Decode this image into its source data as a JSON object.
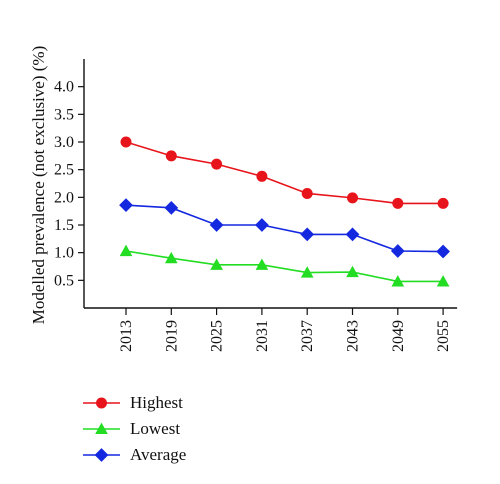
{
  "chart_data": {
    "type": "line",
    "ylabel": "Modelled prevalence (not exclusive) (%)",
    "xlabel": "",
    "categories": [
      "2013",
      "2019",
      "2025",
      "2031",
      "2037",
      "2043",
      "2049",
      "2055"
    ],
    "yticks": [
      "0.5",
      "1.0",
      "1.5",
      "2.0",
      "2.5",
      "3.0",
      "3.5",
      "4.0"
    ],
    "ylim": [
      0.0,
      4.5
    ],
    "grid": false,
    "legend_position": "bottom-left",
    "series": [
      {
        "name": "Highest",
        "color": "#e8141b",
        "marker": "circle",
        "values": [
          3.0,
          2.75,
          2.6,
          2.38,
          2.07,
          1.99,
          1.89,
          1.89
        ]
      },
      {
        "name": "Lowest",
        "color": "#22dd22",
        "marker": "triangle",
        "values": [
          1.03,
          0.9,
          0.78,
          0.78,
          0.64,
          0.65,
          0.48,
          0.48
        ]
      },
      {
        "name": "Average",
        "color": "#1428e0",
        "marker": "diamond",
        "values": [
          1.86,
          1.81,
          1.5,
          1.5,
          1.33,
          1.33,
          1.03,
          1.02
        ]
      }
    ]
  }
}
